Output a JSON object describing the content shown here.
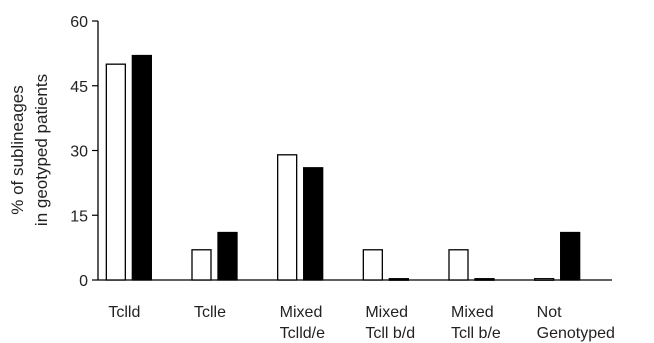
{
  "chart_data": {
    "type": "bar",
    "categories": [
      [
        "Tclld"
      ],
      [
        "Tclle"
      ],
      [
        "Mixed",
        "Tclld/e"
      ],
      [
        "Mixed",
        "Tcll b/d"
      ],
      [
        "Mixed",
        "Tcll b/e"
      ],
      [
        "Not",
        "Genotyped"
      ]
    ],
    "series": [
      {
        "values": [
          50,
          7,
          29,
          7,
          7,
          0.3
        ],
        "fill": "#ffffff",
        "stroke": "#000000"
      },
      {
        "values": [
          52,
          11,
          26,
          0.3,
          0.3,
          11
        ],
        "fill": "#000000",
        "stroke": "#000000"
      }
    ],
    "ylabel": [
      "% of sublineages",
      "in geotyped patients"
    ],
    "xlabel": "",
    "ylim": [
      0,
      60
    ],
    "yticks": [
      0,
      15,
      30,
      45,
      60
    ],
    "grid": false,
    "legend": "none"
  }
}
